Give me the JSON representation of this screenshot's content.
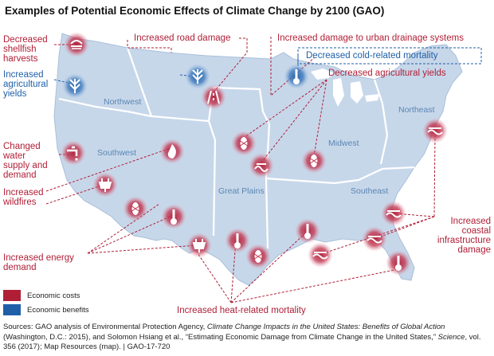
{
  "title": "Examples of Potential Economic Effects of Climate Change by 2100 (GAO)",
  "colors": {
    "cost": "#b01e36",
    "benefit": "#1f5fa8",
    "land": "#c7d7ea",
    "border": "#ffffff"
  },
  "labels": {
    "shellfish": [
      "Decreased",
      "shellfish",
      "harvests"
    ],
    "ag_yields_up": [
      "Increased",
      "agricultural",
      "yields"
    ],
    "road_damage": "Increased road damage",
    "urban_drainage": "Increased damage to urban drainage systems",
    "cold_mortality": "Decreased cold-related mortality",
    "ag_yields_down": "Decreased agricultural yields",
    "water_supply": [
      "Changed",
      "water",
      "supply and",
      "demand"
    ],
    "wildfires": [
      "Increased",
      "wildfires"
    ],
    "energy_demand": [
      "Increased energy",
      "demand"
    ],
    "coastal": [
      "Increased",
      "coastal",
      "infrastructure",
      "damage"
    ],
    "heat_mortality": "Increased heat-related mortality"
  },
  "regions": {
    "northwest": "Northwest",
    "southwest": "Southwest",
    "great_plains": "Great Plains",
    "midwest": "Midwest",
    "southeast": "Southeast",
    "northeast": "Northeast"
  },
  "icons": [
    {
      "name": "shellfish-icon",
      "type": "cost"
    },
    {
      "name": "crop-icon",
      "type": "benefit"
    },
    {
      "name": "crop-icon",
      "type": "benefit"
    },
    {
      "name": "road-icon",
      "type": "cost"
    },
    {
      "name": "thermometer-icon",
      "type": "benefit"
    },
    {
      "name": "faucet-icon",
      "type": "cost"
    },
    {
      "name": "fire-icon",
      "type": "cost"
    },
    {
      "name": "plug-icon",
      "type": "cost"
    },
    {
      "name": "crop-icon",
      "type": "cost"
    },
    {
      "name": "thermometer-icon",
      "type": "cost"
    },
    {
      "name": "crop-icon",
      "type": "cost"
    },
    {
      "name": "drainage-icon",
      "type": "cost"
    },
    {
      "name": "crop-icon",
      "type": "cost"
    },
    {
      "name": "plug-icon",
      "type": "cost"
    },
    {
      "name": "thermometer-icon",
      "type": "cost"
    },
    {
      "name": "crop-icon",
      "type": "cost"
    },
    {
      "name": "thermometer-icon",
      "type": "cost"
    },
    {
      "name": "coastal-icon",
      "type": "cost"
    },
    {
      "name": "coastal-icon",
      "type": "cost"
    },
    {
      "name": "coastal-icon",
      "type": "cost"
    },
    {
      "name": "coastal-icon",
      "type": "cost"
    },
    {
      "name": "thermometer-icon",
      "type": "cost"
    }
  ],
  "legend": {
    "costs": "Economic costs",
    "benefits": "Economic benefits"
  },
  "sources": {
    "prefix": "Sources: GAO analysis of Environmental Protection Agency, ",
    "italic1": "Climate Change Impacts in the United States: Benefits of Global Action",
    "mid": " (Washington, D.C.: 2015), and Solomon Hsiang et al., “Estimating Economic Damage from Climate Change in the United States,” ",
    "italic2": "Science",
    "suffix": ", vol. 356 (2017); Map Resources (map).  |  GAO-17-720"
  }
}
